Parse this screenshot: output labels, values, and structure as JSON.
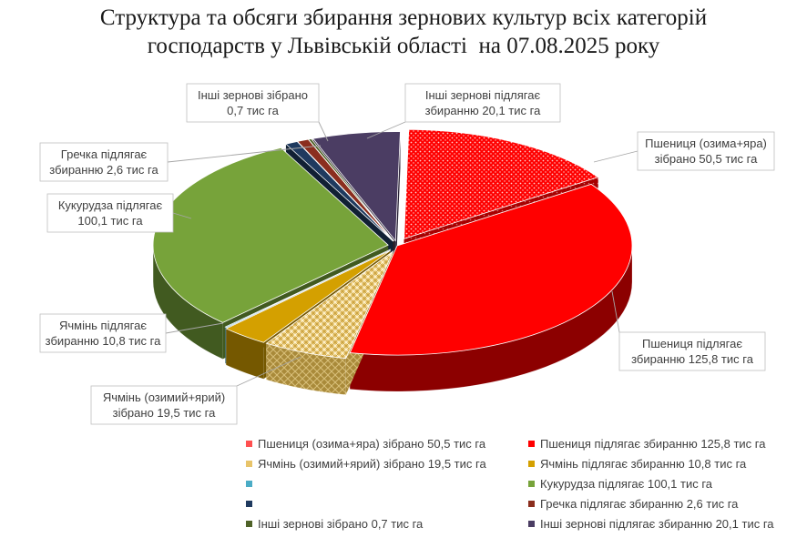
{
  "chart_data": {
    "type": "pie",
    "title": "Структура та обсяги збирання зернових культур всіх категорій господарств у Львівській області  на 07.08.2025 року",
    "units": "тис га",
    "slices": [
      {
        "label": "Пшениця (озима+яра) зібрано 50,5 тис га",
        "callout": [
          "Пшениця (озима+яра)",
          "зібрано 50,5 тис га"
        ],
        "value": 50.5,
        "color": "#ff0000",
        "pattern": "dots"
      },
      {
        "label": "Пшениця підлягає збиранню 125,8 тис га",
        "callout": [
          "Пшениця підлягає",
          "збиранню 125,8 тис га"
        ],
        "value": 125.8,
        "color": "#ff0000",
        "pattern": "solid"
      },
      {
        "label": "Ячмінь (озимий+ярий) зібрано 19,5 тис га",
        "callout": [
          "Ячмінь (озимий+ярий)",
          "зібрано 19,5 тис га"
        ],
        "value": 19.5,
        "color": "#e8c46a",
        "pattern": "weave"
      },
      {
        "label": "Ячмінь підлягає збиранню 10,8 тис га",
        "callout": [
          "Ячмінь підлягає",
          "збиранню 10,8 тис га"
        ],
        "value": 10.8,
        "color": "#d4a000",
        "pattern": "solid"
      },
      {
        "label": "",
        "callout": [],
        "value": 0.4,
        "color": "#4bacc6",
        "pattern": "solid"
      },
      {
        "label": "Кукурудза підлягає 100,1 тис га",
        "callout": [
          "Кукурудза підлягає",
          "100,1 тис га"
        ],
        "value": 100.1,
        "color": "#77a33a",
        "pattern": "solid"
      },
      {
        "label": "",
        "callout": [],
        "value": 2.8,
        "color": "#1f3a5f",
        "pattern": "solid"
      },
      {
        "label": "Гречка підлягає збиранню 2,6 тис га",
        "callout": [
          "Гречка підлягає",
          "збиранню 2,6 тис га"
        ],
        "value": 2.6,
        "color": "#8b2e1e",
        "pattern": "solid"
      },
      {
        "label": "Інші зернові зібрано 0,7 тис га",
        "callout": [
          "Інші зернові зібрано",
          "0,7 тис га"
        ],
        "value": 0.7,
        "color": "#4f6228",
        "pattern": "solid"
      },
      {
        "label": "Інші зернові підлягає збиранню 20,1 тис га",
        "callout": [
          "Інші зернові підлягає",
          "збиранню 20,1 тис га"
        ],
        "value": 20.1,
        "color": "#4b3d63",
        "pattern": "solid"
      }
    ],
    "legend_placement": "bottom"
  }
}
